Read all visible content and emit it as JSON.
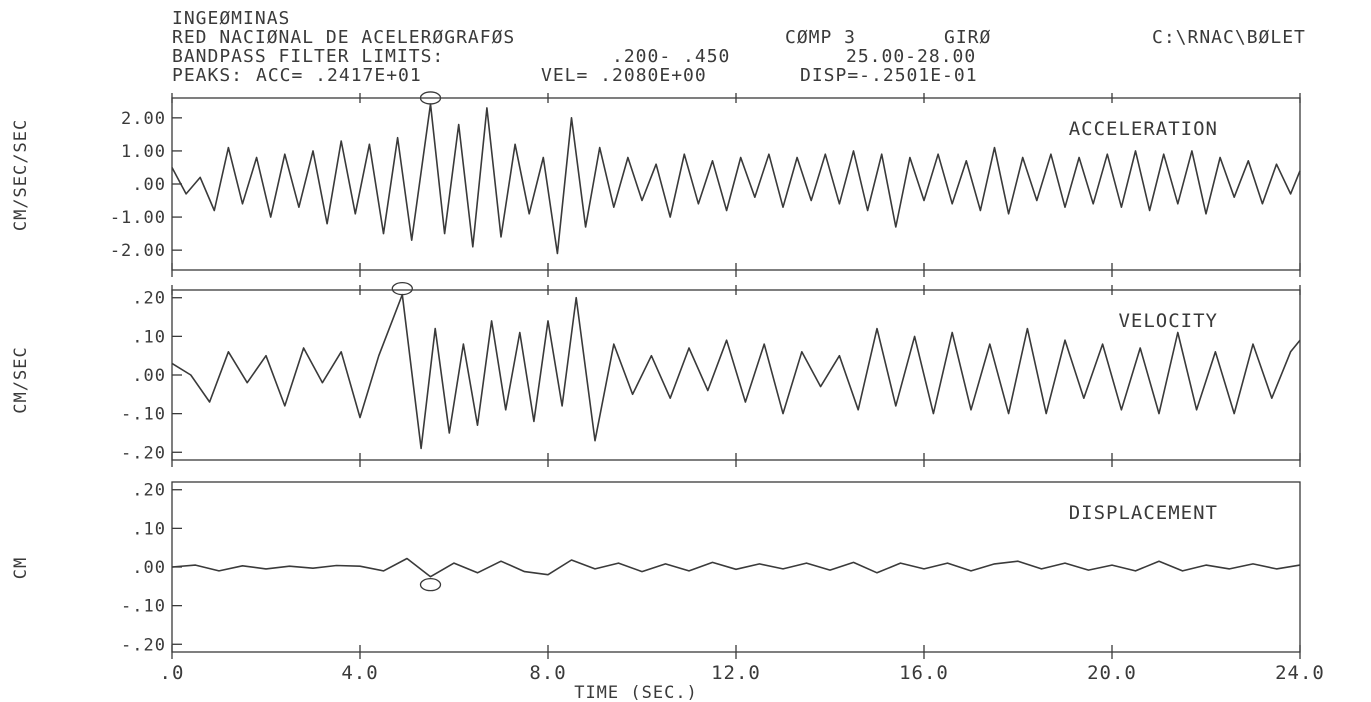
{
  "header": {
    "org": "INGEØMINAS",
    "network": "RED NACIØNAL DE ACELERØGRAFØS",
    "component": "CØMP 3",
    "station": "GIRØ",
    "path": "C:\\RNAC\\BØLET",
    "filter_label": "BANDPASS FILTER LIMITS:",
    "filter_low": ".200- .450",
    "filter_high": "25.00-28.00",
    "peaks_label": "PEAKS:",
    "peak_acc": "ACC= .2417E+01",
    "peak_vel": "VEL= .2080E+00",
    "peak_disp": "DISP=-.2501E-01"
  },
  "chart_data": [
    {
      "type": "line",
      "title": "ACCELERATION",
      "ylabel": "CM/SEC/SEC",
      "xlim": [
        0,
        24
      ],
      "ylim": [
        -2.6,
        2.6
      ],
      "yticks": [
        2,
        1,
        0,
        -1,
        -2
      ],
      "ytick_labels": [
        "2.00",
        "1.00",
        ".00",
        "-1.00",
        "-2.00"
      ],
      "peak": {
        "x": 5.5,
        "y": 2.42
      },
      "x": [
        0,
        0.3,
        0.6,
        0.9,
        1.2,
        1.5,
        1.8,
        2.1,
        2.4,
        2.7,
        3.0,
        3.3,
        3.6,
        3.9,
        4.2,
        4.5,
        4.8,
        5.1,
        5.5,
        5.8,
        6.1,
        6.4,
        6.7,
        7.0,
        7.3,
        7.6,
        7.9,
        8.2,
        8.5,
        8.8,
        9.1,
        9.4,
        9.7,
        10.0,
        10.3,
        10.6,
        10.9,
        11.2,
        11.5,
        11.8,
        12.1,
        12.4,
        12.7,
        13.0,
        13.3,
        13.6,
        13.9,
        14.2,
        14.5,
        14.8,
        15.1,
        15.4,
        15.7,
        16.0,
        16.3,
        16.6,
        16.9,
        17.2,
        17.5,
        17.8,
        18.1,
        18.4,
        18.7,
        19.0,
        19.3,
        19.6,
        19.9,
        20.2,
        20.5,
        20.8,
        21.1,
        21.4,
        21.7,
        22.0,
        22.3,
        22.6,
        22.9,
        23.2,
        23.5,
        23.8,
        24.0
      ],
      "y": [
        0.5,
        -0.3,
        0.2,
        -0.8,
        1.1,
        -0.6,
        0.8,
        -1.0,
        0.9,
        -0.7,
        1.0,
        -1.2,
        1.3,
        -0.9,
        1.2,
        -1.5,
        1.4,
        -1.7,
        2.42,
        -1.5,
        1.8,
        -1.9,
        2.3,
        -1.6,
        1.2,
        -0.9,
        0.8,
        -2.1,
        2.0,
        -1.3,
        1.1,
        -0.7,
        0.8,
        -0.5,
        0.6,
        -1.0,
        0.9,
        -0.6,
        0.7,
        -0.8,
        0.8,
        -0.4,
        0.9,
        -0.7,
        0.8,
        -0.5,
        0.9,
        -0.6,
        1.0,
        -0.8,
        0.9,
        -1.3,
        0.8,
        -0.5,
        0.9,
        -0.6,
        0.7,
        -0.8,
        1.1,
        -0.9,
        0.8,
        -0.5,
        0.9,
        -0.7,
        0.8,
        -0.6,
        0.9,
        -0.7,
        1.0,
        -0.8,
        0.9,
        -0.6,
        1.0,
        -0.9,
        0.8,
        -0.4,
        0.7,
        -0.6,
        0.6,
        -0.3,
        0.4
      ]
    },
    {
      "type": "line",
      "title": "VELOCITY",
      "ylabel": "CM/SEC",
      "xlim": [
        0,
        24
      ],
      "ylim": [
        -0.22,
        0.22
      ],
      "yticks": [
        0.2,
        0.1,
        0,
        -0.1,
        -0.2
      ],
      "ytick_labels": [
        ".20",
        ".10",
        ".00",
        "-.10",
        "-.20"
      ],
      "peak": {
        "x": 4.9,
        "y": 0.208
      },
      "x": [
        0,
        0.4,
        0.8,
        1.2,
        1.6,
        2.0,
        2.4,
        2.8,
        3.2,
        3.6,
        4.0,
        4.4,
        4.9,
        5.3,
        5.6,
        5.9,
        6.2,
        6.5,
        6.8,
        7.1,
        7.4,
        7.7,
        8.0,
        8.3,
        8.6,
        9.0,
        9.4,
        9.8,
        10.2,
        10.6,
        11.0,
        11.4,
        11.8,
        12.2,
        12.6,
        13.0,
        13.4,
        13.8,
        14.2,
        14.6,
        15.0,
        15.4,
        15.8,
        16.2,
        16.6,
        17.0,
        17.4,
        17.8,
        18.2,
        18.6,
        19.0,
        19.4,
        19.8,
        20.2,
        20.6,
        21.0,
        21.4,
        21.8,
        22.2,
        22.6,
        23.0,
        23.4,
        23.8,
        24.0
      ],
      "y": [
        0.03,
        0.0,
        -0.07,
        0.06,
        -0.02,
        0.05,
        -0.08,
        0.07,
        -0.02,
        0.06,
        -0.11,
        0.05,
        0.208,
        -0.19,
        0.12,
        -0.15,
        0.08,
        -0.13,
        0.14,
        -0.09,
        0.11,
        -0.12,
        0.14,
        -0.08,
        0.2,
        -0.17,
        0.08,
        -0.05,
        0.05,
        -0.06,
        0.07,
        -0.04,
        0.09,
        -0.07,
        0.08,
        -0.1,
        0.06,
        -0.03,
        0.05,
        -0.09,
        0.12,
        -0.08,
        0.1,
        -0.1,
        0.11,
        -0.09,
        0.08,
        -0.1,
        0.12,
        -0.1,
        0.09,
        -0.06,
        0.08,
        -0.09,
        0.07,
        -0.1,
        0.11,
        -0.09,
        0.06,
        -0.1,
        0.08,
        -0.06,
        0.06,
        0.09
      ]
    },
    {
      "type": "line",
      "title": "DISPLACEMENT",
      "ylabel": "CM",
      "xlim": [
        0,
        24
      ],
      "ylim": [
        -0.22,
        0.22
      ],
      "yticks": [
        0.2,
        0.1,
        0,
        -0.1,
        -0.2
      ],
      "ytick_labels": [
        ".20",
        ".10",
        ".00",
        "-.10",
        "-.20"
      ],
      "xticks": [
        0,
        4,
        8,
        12,
        16,
        20,
        24
      ],
      "xtick_labels": [
        ".0",
        "4.0",
        "8.0",
        "12.0",
        "16.0",
        "20.0",
        "24.0"
      ],
      "xlabel": "TIME (SEC.)",
      "peak": {
        "x": 5.5,
        "y": -0.025
      },
      "x": [
        0,
        0.5,
        1.0,
        1.5,
        2.0,
        2.5,
        3.0,
        3.5,
        4.0,
        4.5,
        5.0,
        5.5,
        6.0,
        6.5,
        7.0,
        7.5,
        8.0,
        8.5,
        9.0,
        9.5,
        10.0,
        10.5,
        11.0,
        11.5,
        12.0,
        12.5,
        13.0,
        13.5,
        14.0,
        14.5,
        15.0,
        15.5,
        16.0,
        16.5,
        17.0,
        17.5,
        18.0,
        18.5,
        19.0,
        19.5,
        20.0,
        20.5,
        21.0,
        21.5,
        22.0,
        22.5,
        23.0,
        23.5,
        24.0
      ],
      "y": [
        0.0,
        0.005,
        -0.01,
        0.003,
        -0.005,
        0.002,
        -0.003,
        0.004,
        0.002,
        -0.01,
        0.022,
        -0.025,
        0.01,
        -0.015,
        0.015,
        -0.012,
        -0.02,
        0.018,
        -0.005,
        0.01,
        -0.012,
        0.008,
        -0.01,
        0.012,
        -0.006,
        0.008,
        -0.005,
        0.01,
        -0.008,
        0.012,
        -0.015,
        0.01,
        -0.005,
        0.01,
        -0.01,
        0.008,
        0.015,
        -0.005,
        0.01,
        -0.008,
        0.005,
        -0.01,
        0.015,
        -0.01,
        0.005,
        -0.005,
        0.008,
        -0.005,
        0.005
      ]
    }
  ]
}
